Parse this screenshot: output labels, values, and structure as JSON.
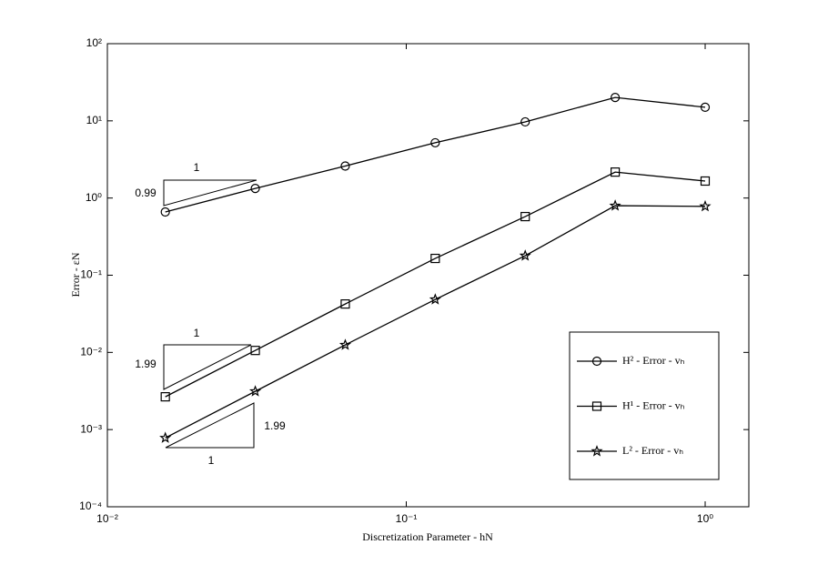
{
  "chart_data": {
    "type": "line",
    "xlabel": "Discretization Parameter - hN",
    "ylabel": "Error - εN",
    "xscale": "log",
    "yscale": "log",
    "xlim": [
      0.01,
      1.4
    ],
    "ylim": [
      0.0001,
      100
    ],
    "xticks": [
      {
        "value": 0.01,
        "label": "10⁻²"
      },
      {
        "value": 0.1,
        "label": "10⁻¹"
      },
      {
        "value": 1,
        "label": "10⁰"
      }
    ],
    "yticks": [
      {
        "value": 0.0001,
        "label": "10⁻⁴"
      },
      {
        "value": 0.001,
        "label": "10⁻³"
      },
      {
        "value": 0.01,
        "label": "10⁻²"
      },
      {
        "value": 0.1,
        "label": "10⁻¹"
      },
      {
        "value": 1,
        "label": "10⁰"
      },
      {
        "value": 10,
        "label": "10¹"
      },
      {
        "value": 100,
        "label": "10²"
      }
    ],
    "x": [
      0.015625,
      0.03125,
      0.0625,
      0.125,
      0.25,
      0.5,
      1
    ],
    "series": [
      {
        "name": "H² - Error - vₕ",
        "color": "#000000",
        "marker": "circle",
        "values": [
          0.66,
          1.33,
          2.6,
          5.2,
          9.7,
          20.1,
          15.0
        ]
      },
      {
        "name": "H¹ - Error - vₕ",
        "color": "#000000",
        "marker": "square",
        "values": [
          0.00266,
          0.0106,
          0.0424,
          0.165,
          0.575,
          2.17,
          1.66
        ]
      },
      {
        "name": "L² - Error - vₕ",
        "color": "#000000",
        "marker": "star",
        "values": [
          0.00078,
          0.00313,
          0.0125,
          0.0485,
          0.179,
          0.796,
          0.78
        ]
      }
    ],
    "annotations": [
      "1",
      "0.99",
      "1",
      "1.99",
      "1.99",
      "1"
    ],
    "legend": "lower-right"
  }
}
